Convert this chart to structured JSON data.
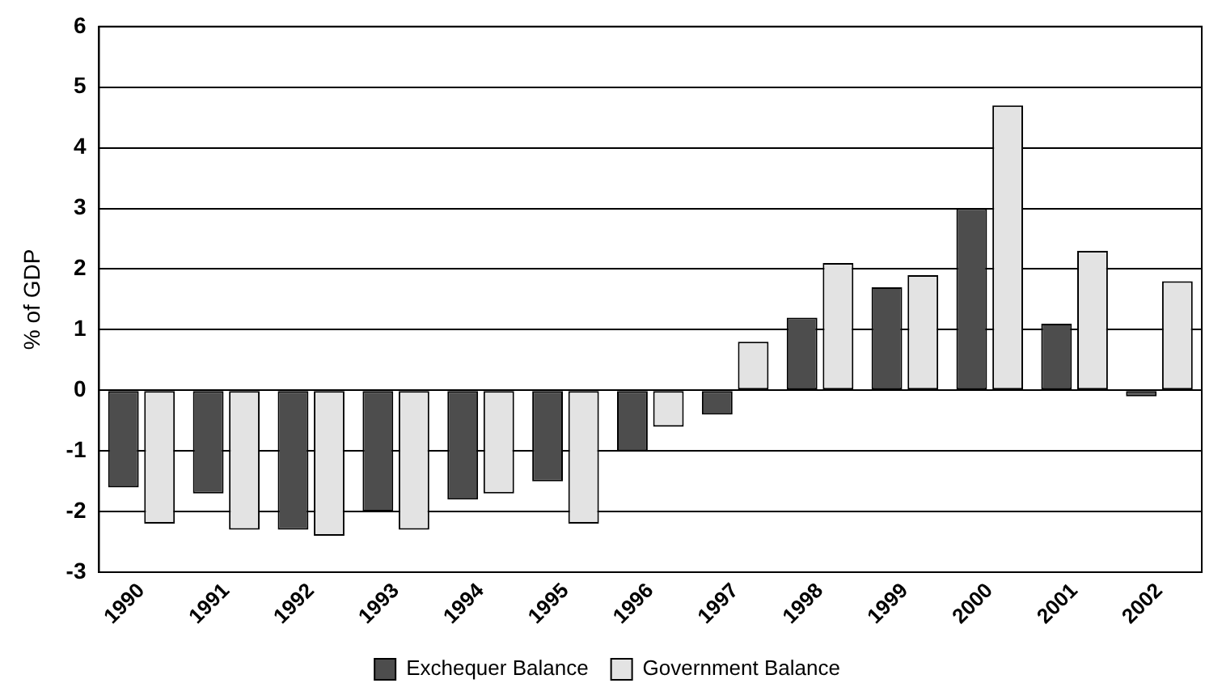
{
  "chart_data": {
    "type": "bar",
    "ylabel": "% of GDP",
    "categories": [
      "1990",
      "1991",
      "1992",
      "1993",
      "1994",
      "1995",
      "1996",
      "1997",
      "1998",
      "1999",
      "2000",
      "2001",
      "2002"
    ],
    "series": [
      {
        "name": "Exchequer Balance",
        "color": "#4d4d4d",
        "values": [
          -1.6,
          -1.7,
          -2.3,
          -2.0,
          -1.8,
          -1.5,
          -1.0,
          -0.4,
          1.2,
          1.7,
          3.0,
          1.1,
          -0.1
        ]
      },
      {
        "name": "Government Balance",
        "color": "#e3e3e3",
        "values": [
          -2.2,
          -2.3,
          -2.4,
          -2.3,
          -1.7,
          -2.2,
          -0.6,
          0.8,
          2.1,
          1.9,
          4.7,
          2.3,
          1.8
        ]
      }
    ],
    "ylim": [
      -3,
      6
    ],
    "yticks": [
      -3,
      -2,
      -1,
      0,
      1,
      2,
      3,
      4,
      5,
      6
    ],
    "grid": "y",
    "legend": "bottom"
  }
}
